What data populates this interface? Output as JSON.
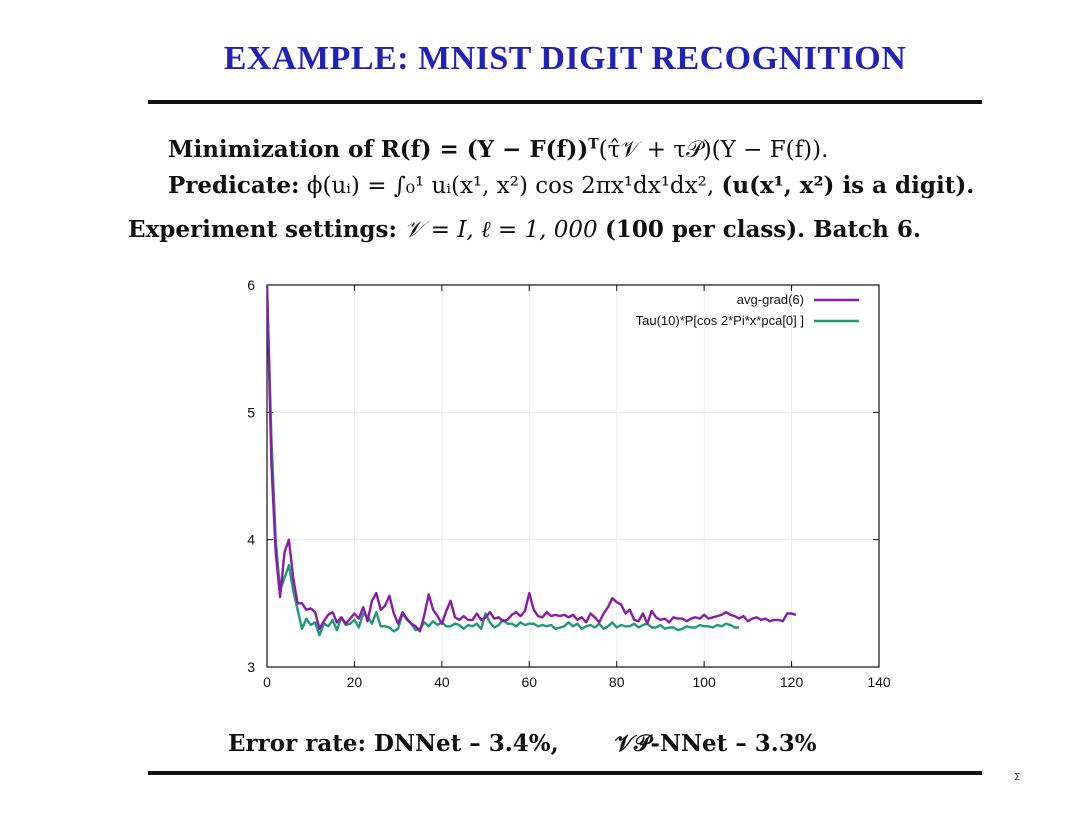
{
  "slide": {
    "title": "EXAMPLE: MNIST DIGIT RECOGNITION",
    "line1": {
      "label": "Minimization of",
      "formula_a": "R(f) = (Y − F(f))",
      "sup": "T",
      "formula_b": "(τ̂𝒱 + τ𝒫)(Y − F(f))."
    },
    "line2": {
      "label": "Predicate:",
      "formula": "ϕ(uᵢ) = ∫₀¹ uᵢ(x¹, x²) cos 2πx¹dx¹dx²,",
      "note": "(u(x¹, x²) is a digit)."
    },
    "line3": {
      "label": "Experiment settings:",
      "formula": "𝒱 = I, ℓ = 1, 000",
      "note": "(100 per class). Batch 6."
    },
    "error": {
      "left": "Error rate: DNNet – 3.4%,",
      "right": "𝒱𝒫-NNet – 3.3%"
    },
    "page_number": "Σ"
  },
  "colors": {
    "title": "#2222bb",
    "series1": "#8a1aa8",
    "series2": "#1f9a78"
  },
  "chart_data": {
    "type": "line",
    "title": "",
    "xlabel": "",
    "ylabel": "",
    "xlim": [
      0,
      140
    ],
    "ylim": [
      3,
      6
    ],
    "xticks": [
      "0",
      "20",
      "40",
      "60",
      "80",
      "100",
      "120",
      "140"
    ],
    "yticks": [
      "3",
      "4",
      "5",
      "6"
    ],
    "ytick_values": [
      3,
      4,
      5,
      6
    ],
    "grid": true,
    "legend": "top-right",
    "series": [
      {
        "name": "avg-grad(6)",
        "color": "#8a1aa8",
        "x": [
          0,
          1,
          2,
          3,
          4,
          5,
          6,
          7,
          8,
          9,
          10,
          11,
          12,
          13,
          14,
          15,
          16,
          17,
          18,
          19,
          20,
          21,
          22,
          23,
          24,
          25,
          26,
          27,
          28,
          29,
          30,
          31,
          32,
          33,
          34,
          35,
          36,
          37,
          38,
          39,
          40,
          41,
          42,
          43,
          44,
          45,
          46,
          47,
          48,
          49,
          50,
          51,
          52,
          53,
          54,
          55,
          56,
          57,
          58,
          59,
          60,
          61,
          62,
          63,
          64,
          65,
          66,
          67,
          68,
          69,
          70,
          71,
          72,
          73,
          74,
          75,
          76,
          77,
          78,
          79,
          80,
          81,
          82,
          83,
          84,
          85,
          86,
          87,
          88,
          89,
          90,
          91,
          92,
          93,
          94,
          95,
          96,
          97,
          98,
          99,
          100,
          101,
          102,
          103,
          104,
          105,
          106,
          107,
          108,
          109,
          110,
          111,
          112,
          113,
          114,
          115,
          116,
          117,
          118,
          119,
          120,
          121
        ],
        "y": [
          6.0,
          4.6,
          3.9,
          3.55,
          3.9,
          4.0,
          3.7,
          3.5,
          3.5,
          3.45,
          3.46,
          3.43,
          3.3,
          3.36,
          3.41,
          3.43,
          3.35,
          3.39,
          3.34,
          3.38,
          3.42,
          3.38,
          3.47,
          3.36,
          3.52,
          3.58,
          3.45,
          3.48,
          3.56,
          3.42,
          3.34,
          3.43,
          3.38,
          3.34,
          3.32,
          3.28,
          3.41,
          3.57,
          3.45,
          3.4,
          3.34,
          3.44,
          3.52,
          3.39,
          3.37,
          3.4,
          3.37,
          3.37,
          3.42,
          3.37,
          3.39,
          3.43,
          3.38,
          3.39,
          3.36,
          3.37,
          3.41,
          3.43,
          3.4,
          3.44,
          3.58,
          3.45,
          3.4,
          3.39,
          3.43,
          3.4,
          3.41,
          3.4,
          3.41,
          3.39,
          3.41,
          3.37,
          3.39,
          3.35,
          3.42,
          3.39,
          3.35,
          3.42,
          3.47,
          3.54,
          3.51,
          3.49,
          3.42,
          3.45,
          3.37,
          3.36,
          3.42,
          3.34,
          3.44,
          3.39,
          3.37,
          3.38,
          3.35,
          3.39,
          3.38,
          3.38,
          3.36,
          3.38,
          3.39,
          3.38,
          3.41,
          3.38,
          3.39,
          3.4,
          3.41,
          3.43,
          3.41,
          3.4,
          3.38,
          3.4,
          3.36,
          3.38,
          3.39,
          3.37,
          3.38,
          3.36,
          3.37,
          3.37,
          3.36,
          3.42,
          3.42,
          3.41
        ]
      },
      {
        "name": "Tau(10)*P[cos 2*Pi*x*pca[0] ]",
        "color": "#1f9a78",
        "x": [
          0,
          1,
          2,
          3,
          4,
          5,
          6,
          7,
          8,
          9,
          10,
          11,
          12,
          13,
          14,
          15,
          16,
          17,
          18,
          19,
          20,
          21,
          22,
          23,
          24,
          25,
          26,
          27,
          28,
          29,
          30,
          31,
          32,
          33,
          34,
          35,
          36,
          37,
          38,
          39,
          40,
          41,
          42,
          43,
          44,
          45,
          46,
          47,
          48,
          49,
          50,
          51,
          52,
          53,
          54,
          55,
          56,
          57,
          58,
          59,
          60,
          61,
          62,
          63,
          64,
          65,
          66,
          67,
          68,
          69,
          70,
          71,
          72,
          73,
          74,
          75,
          76,
          77,
          78,
          79,
          80,
          81,
          82,
          83,
          84,
          85,
          86,
          87,
          88,
          89,
          90,
          91,
          92,
          93,
          94,
          95,
          96,
          97,
          98,
          99,
          100,
          101,
          102,
          103,
          104,
          105,
          106,
          107,
          108
        ],
        "y": [
          6.0,
          4.8,
          4.0,
          3.6,
          3.7,
          3.8,
          3.6,
          3.45,
          3.3,
          3.38,
          3.33,
          3.35,
          3.25,
          3.34,
          3.32,
          3.37,
          3.29,
          3.39,
          3.33,
          3.34,
          3.37,
          3.31,
          3.42,
          3.4,
          3.34,
          3.43,
          3.32,
          3.32,
          3.31,
          3.28,
          3.3,
          3.42,
          3.37,
          3.34,
          3.29,
          3.3,
          3.35,
          3.32,
          3.36,
          3.33,
          3.35,
          3.32,
          3.32,
          3.34,
          3.33,
          3.3,
          3.33,
          3.32,
          3.34,
          3.3,
          3.42,
          3.35,
          3.31,
          3.33,
          3.37,
          3.34,
          3.34,
          3.32,
          3.35,
          3.33,
          3.34,
          3.34,
          3.32,
          3.33,
          3.32,
          3.33,
          3.3,
          3.31,
          3.32,
          3.35,
          3.32,
          3.34,
          3.3,
          3.32,
          3.33,
          3.31,
          3.34,
          3.3,
          3.32,
          3.35,
          3.31,
          3.33,
          3.32,
          3.32,
          3.34,
          3.31,
          3.33,
          3.34,
          3.31,
          3.31,
          3.33,
          3.3,
          3.31,
          3.31,
          3.29,
          3.3,
          3.32,
          3.31,
          3.31,
          3.33,
          3.32,
          3.32,
          3.31,
          3.33,
          3.32,
          3.34,
          3.33,
          3.31,
          3.31
        ]
      }
    ]
  }
}
